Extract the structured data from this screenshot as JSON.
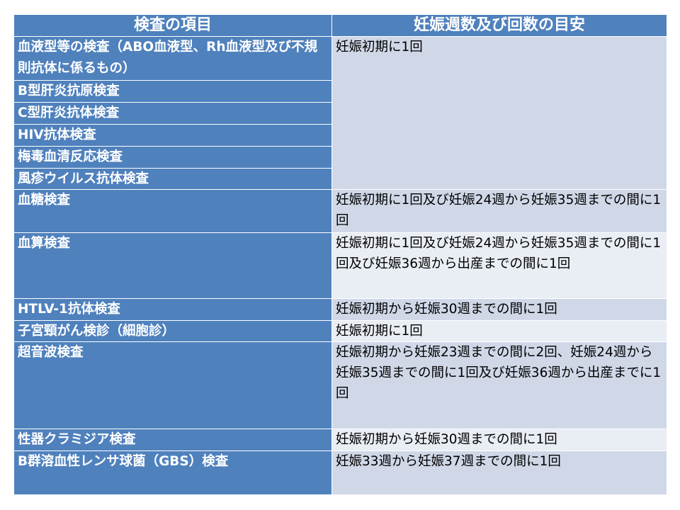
{
  "header": {
    "col1": "検査の項目",
    "col2": "妊娠週数及び回数の目安"
  },
  "rows": [
    {
      "item": "血液型等の検査（ABO血液型、Rh血液型及び不規則抗体に係るもの）",
      "schedule": "妊娠初期に1回"
    },
    {
      "item": "B型肝炎抗原検査"
    },
    {
      "item": "C型肝炎抗体検査"
    },
    {
      "item": "HIV抗体検査"
    },
    {
      "item": "梅毒血清反応検査"
    },
    {
      "item": "風疹ウイルス抗体検査"
    },
    {
      "item": "血糖検査",
      "schedule": "妊娠初期に1回及び妊娠24週から妊娠35週までの間に1回"
    },
    {
      "item": "血算検査",
      "schedule": "妊娠初期に1回及び妊娠24週から妊娠35週までの間に1回及び妊娠36週から出産までの間に1回"
    },
    {
      "item": "HTLV-1抗体検査",
      "schedule": "妊娠初期から妊娠30週までの間に1回"
    },
    {
      "item": "子宮頸がん検診（細胞診）",
      "schedule": "妊娠初期に1回"
    },
    {
      "item": "超音波検査",
      "schedule": "妊娠初期から妊娠23週までの間に2回、妊娠24週から妊娠35週までの間に1回及び妊娠36週から出産までに1回"
    },
    {
      "item": "性器クラミジア検査",
      "schedule": "妊娠初期から妊娠30週までの間に1回"
    },
    {
      "item": "B群溶血性レンサ球菌（GBS）検査",
      "schedule": "妊娠33週から妊娠37週までの間に1回"
    }
  ],
  "colors": {
    "header": "#4f81bd",
    "cell_dark": "#d0d8e8",
    "cell_light": "#e9edf4"
  }
}
